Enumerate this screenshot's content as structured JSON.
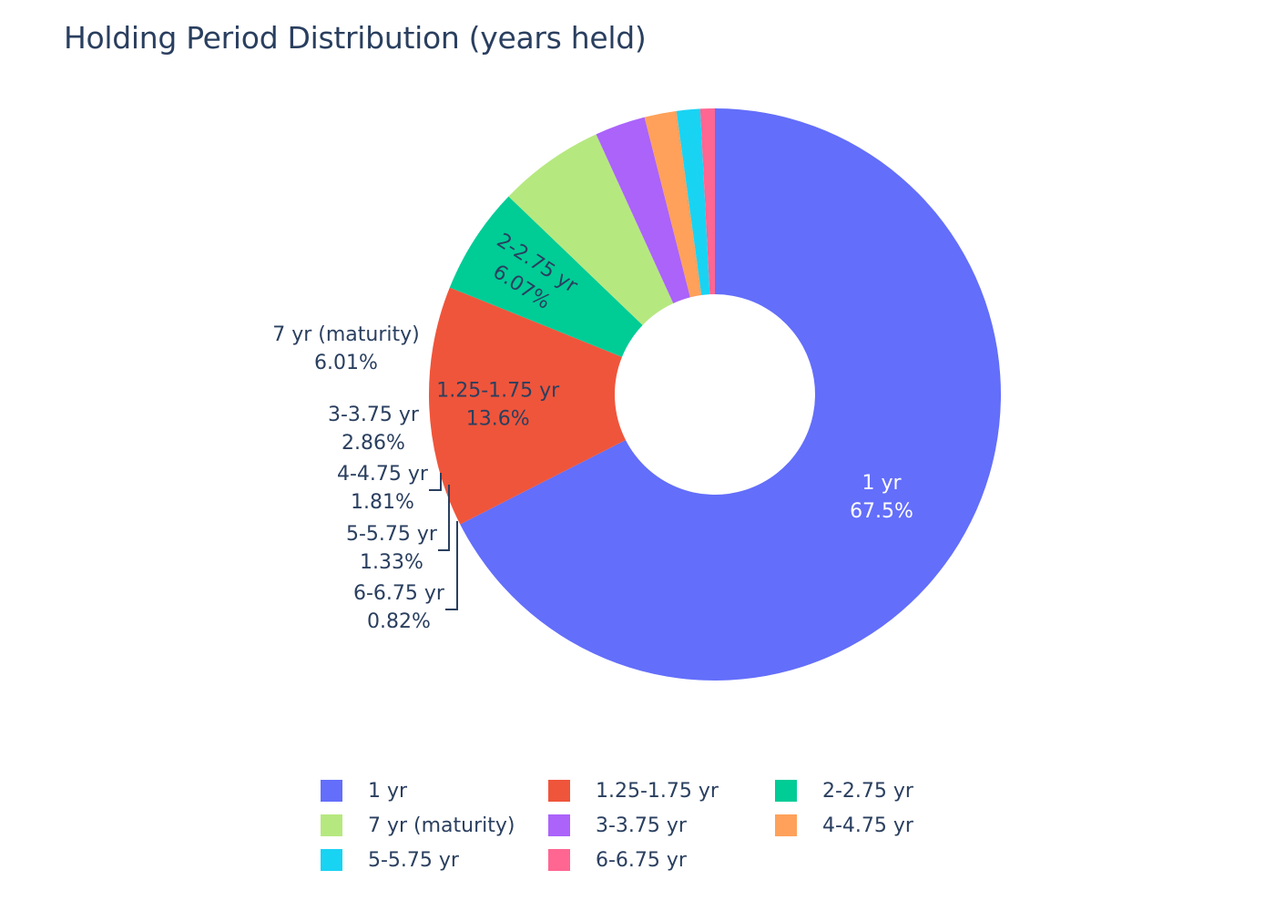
{
  "chart_data": {
    "type": "pie",
    "hole": true,
    "title": "Holding Period Distribution (years held)",
    "legend_position": "bottom",
    "slices": [
      {
        "label": "1 yr",
        "value": 67.5,
        "percent_text": "67.5%",
        "color": "#636efa",
        "text_color": "#ffffff"
      },
      {
        "label": "1.25-1.75 yr",
        "value": 13.6,
        "percent_text": "13.6%",
        "color": "#ef553b",
        "text_color": "#2a3f5f"
      },
      {
        "label": "2-2.75 yr",
        "value": 6.07,
        "percent_text": "6.07%",
        "color": "#00cc96",
        "text_color": "#2a3f5f"
      },
      {
        "label": "7 yr (maturity)",
        "value": 6.01,
        "percent_text": "6.01%",
        "color": "#b6e880",
        "text_color": "#2a3f5f"
      },
      {
        "label": "3-3.75 yr",
        "value": 2.86,
        "percent_text": "2.86%",
        "color": "#ab63fa",
        "text_color": "#2a3f5f"
      },
      {
        "label": "4-4.75 yr",
        "value": 1.81,
        "percent_text": "1.81%",
        "color": "#ffa15a",
        "text_color": "#2a3f5f"
      },
      {
        "label": "5-5.75 yr",
        "value": 1.33,
        "percent_text": "1.33%",
        "color": "#19d3f3",
        "text_color": "#2a3f5f"
      },
      {
        "label": "6-6.75 yr",
        "value": 0.82,
        "percent_text": "0.82%",
        "color": "#ff6692",
        "text_color": "#2a3f5f"
      }
    ],
    "legend_order": [
      "1 yr",
      "1.25-1.75 yr",
      "2-2.75 yr",
      "7 yr (maturity)",
      "3-3.75 yr",
      "4-4.75 yr",
      "5-5.75 yr",
      "6-6.75 yr"
    ]
  }
}
